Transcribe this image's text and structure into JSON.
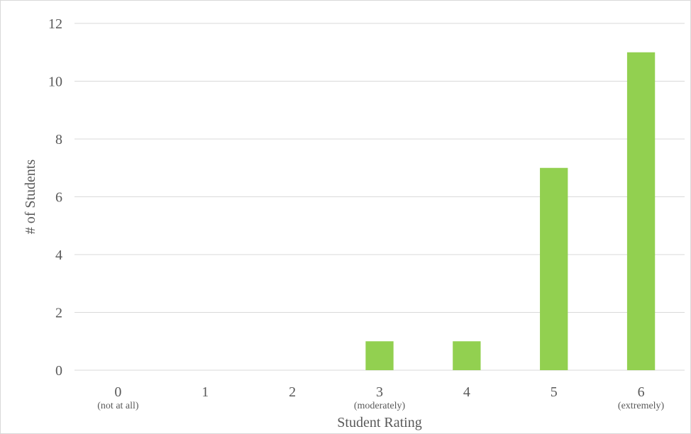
{
  "chart_data": {
    "type": "bar",
    "categories": [
      "0",
      "1",
      "2",
      "3",
      "4",
      "5",
      "6"
    ],
    "category_sublabels": [
      "(not at all)",
      "",
      "",
      "(moderately)",
      "",
      "",
      "(extremely)"
    ],
    "values": [
      0,
      0,
      0,
      1,
      1,
      7,
      11
    ],
    "title": "",
    "xlabel": "Student Rating",
    "ylabel": "# of Students",
    "ylim": [
      0,
      12
    ],
    "yticks": [
      0,
      2,
      4,
      6,
      8,
      10,
      12
    ],
    "grid": true,
    "legend": "none",
    "colors": {
      "bar": "#92d050",
      "grid": "#d9d9d9",
      "text": "#595959",
      "border": "#d9d9d9"
    }
  }
}
